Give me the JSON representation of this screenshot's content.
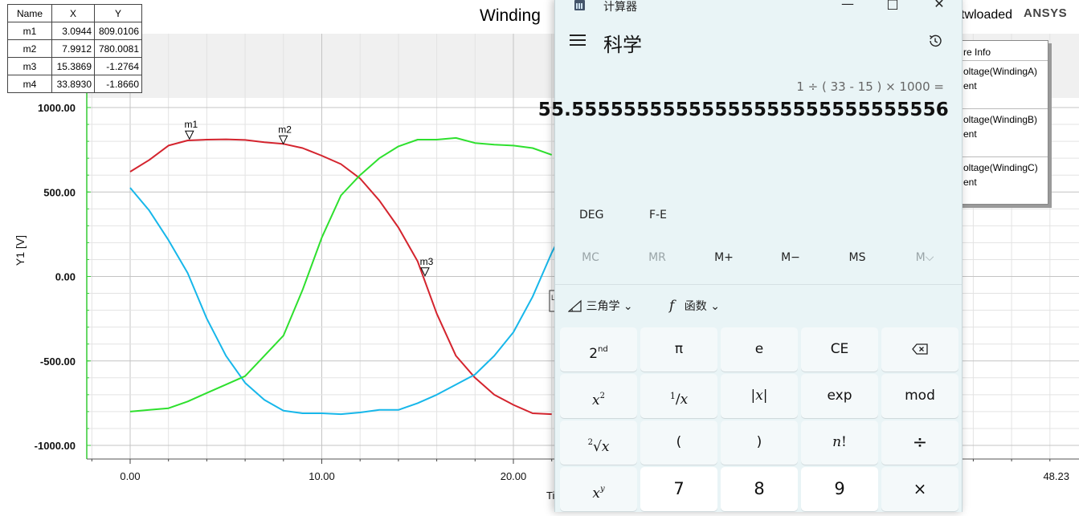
{
  "plot": {
    "title": "Winding ",
    "subtitle_fragment": "twloaded",
    "brand": "ANSYS",
    "ylabel": "Y1 [V]",
    "xlabel_fragment": "Ti",
    "y_ticks": [
      "1000.00",
      "500.00",
      "0.00",
      "-500.00",
      "-1000.00"
    ],
    "x_ticks": [
      "0.00",
      "10.00",
      "20.00"
    ],
    "x_end_label": "48.23",
    "partial_label": "L S"
  },
  "markers_table": {
    "headers": [
      "Name",
      "X",
      "Y"
    ],
    "rows": [
      {
        "name": "m1",
        "x": "3.0944",
        "y": "809.0106"
      },
      {
        "name": "m2",
        "x": "7.9912",
        "y": "780.0081"
      },
      {
        "name": "m3",
        "x": "15.3869",
        "y": "-1.2764"
      },
      {
        "name": "m4",
        "x": "33.8930",
        "y": "-1.8660"
      }
    ]
  },
  "legend": {
    "header": "re Info",
    "entries": [
      {
        "line1": "oltage(WindingA)",
        "line2": "ent",
        "color": "#d4242e"
      },
      {
        "line1": "oltage(WindingB)",
        "line2": "ent",
        "color": "#17b7ea"
      },
      {
        "line1": "oltage(WindingC)",
        "line2": "ent",
        "color": "#2ee02e"
      }
    ]
  },
  "chart_data": {
    "type": "line",
    "xlabel": "Ti",
    "ylabel": "Y1 [V]",
    "xlim": [
      -2,
      48.23
    ],
    "ylim": [
      -1050,
      1000
    ],
    "grid": true,
    "series": [
      {
        "name": "Voltage(WindingA)",
        "color": "#d4242e",
        "x": [
          0,
          1,
          2,
          3,
          4,
          5,
          6,
          7,
          8,
          9,
          10,
          11,
          12,
          13,
          14,
          15,
          16,
          17,
          18,
          19,
          20,
          21,
          22
        ],
        "y": [
          620,
          690,
          775,
          805,
          810,
          812,
          808,
          795,
          785,
          760,
          715,
          665,
          580,
          450,
          290,
          90,
          -220,
          -470,
          -600,
          -700,
          -760,
          -810,
          -815
        ]
      },
      {
        "name": "Voltage(WindingB)",
        "color": "#17b7ea",
        "x": [
          0,
          1,
          2,
          3,
          4,
          5,
          6,
          7,
          8,
          9,
          10,
          11,
          12,
          13,
          14,
          15,
          16,
          17,
          18,
          19,
          20,
          21,
          22,
          22.5
        ],
        "y": [
          525,
          390,
          215,
          20,
          -250,
          -470,
          -630,
          -730,
          -795,
          -810,
          -810,
          -815,
          -805,
          -790,
          -790,
          -750,
          -700,
          -640,
          -580,
          -470,
          -330,
          -120,
          140,
          250
        ]
      },
      {
        "name": "Voltage(WindingC)",
        "color": "#2ee02e",
        "x": [
          0,
          1,
          2,
          3,
          4,
          5,
          6,
          7,
          8,
          9,
          10,
          11,
          12,
          13,
          14,
          15,
          16,
          17,
          18,
          19,
          20,
          21,
          22
        ],
        "y": [
          -800,
          -790,
          -780,
          -740,
          -690,
          -640,
          -590,
          -470,
          -350,
          -80,
          230,
          480,
          600,
          700,
          770,
          810,
          810,
          820,
          790,
          780,
          775,
          760,
          720
        ]
      }
    ],
    "markers": [
      {
        "name": "m1",
        "x": 3.0944,
        "y": 809.0106
      },
      {
        "name": "m2",
        "x": 7.9912,
        "y": 780.0081
      },
      {
        "name": "m3",
        "x": 15.3869,
        "y": -1.2764
      }
    ]
  },
  "calculator": {
    "window_title": "计算器",
    "mode": "科学",
    "expression": "1 ÷ ( 33 - 15 ) × 1000 =",
    "result": "55.55555555555555555555555555556",
    "angle_mode": "DEG",
    "fe_label": "F-E",
    "memory": [
      {
        "label": "MC",
        "enabled": false
      },
      {
        "label": "MR",
        "enabled": false
      },
      {
        "label": "M+",
        "enabled": true
      },
      {
        "label": "M−",
        "enabled": true
      },
      {
        "label": "MS",
        "enabled": true
      },
      {
        "label": "M⌵",
        "enabled": false
      }
    ],
    "trig_label": "三角学",
    "func_label": "函数",
    "keys": [
      [
        "2nd",
        "π",
        "e",
        "CE",
        "⌫"
      ],
      [
        "x²",
        "¹⁄x",
        "|x|",
        "exp",
        "mod"
      ],
      [
        "²√x",
        "(",
        ")",
        "n!",
        "÷"
      ],
      [
        "xʸ",
        "7",
        "8",
        "9",
        "×"
      ]
    ]
  }
}
